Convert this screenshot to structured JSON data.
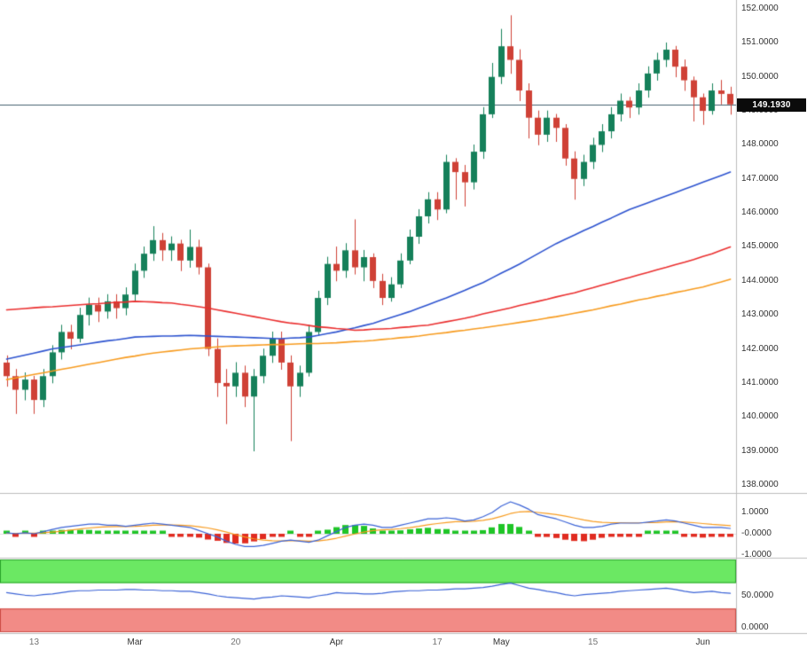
{
  "colors": {
    "background": "#ffffff",
    "candle_up": "#15805a",
    "candle_down": "#cf4136",
    "ma_fast_blue": "#2d53cf",
    "ma_mid_red": "#ea2e2e",
    "ma_slow_orange": "#f79b1f",
    "last_price_line": "#44606f",
    "badge_bg": "#0b0b0b",
    "badge_text": "#ffffff",
    "hist_up": "#1fc527",
    "hist_down": "#e02b20",
    "indicator_line_blue": "#3b63d6",
    "indicator_line_orange": "#f79b1f",
    "band_green_fill": "#6be863",
    "band_green_edge": "#2aa42a",
    "band_red_fill": "#f28b86",
    "band_red_edge": "#cc4a42",
    "separator": "#bdbdbd",
    "axis_text": "#333333"
  },
  "chart_data": {
    "type": "candlestick",
    "title": "",
    "legend_position": "none",
    "grid": false,
    "x_tick_labels": [
      {
        "label": "13",
        "index": 3,
        "emphasis": false
      },
      {
        "label": "Mar",
        "index": 14,
        "emphasis": true
      },
      {
        "label": "20",
        "index": 25,
        "emphasis": false
      },
      {
        "label": "Apr",
        "index": 36,
        "emphasis": true
      },
      {
        "label": "17",
        "index": 47,
        "emphasis": false
      },
      {
        "label": "May",
        "index": 54,
        "emphasis": true
      },
      {
        "label": "15",
        "index": 64,
        "emphasis": false
      },
      {
        "label": "Jun",
        "index": 76,
        "emphasis": true
      }
    ],
    "price_axis": {
      "tick_labels": [
        "152.0000",
        "151.0000",
        "150.0000",
        "149.0000",
        "148.0000",
        "147.0000",
        "146.0000",
        "145.0000",
        "144.0000",
        "143.0000",
        "142.0000",
        "141.0000",
        "140.0000",
        "139.0000",
        "138.0000"
      ],
      "last_price": "149.1930",
      "range": [
        138.0,
        152.3
      ]
    },
    "candles": [
      [
        141.6,
        141.8,
        140.9,
        141.2
      ],
      [
        141.2,
        141.4,
        140.1,
        140.8
      ],
      [
        140.8,
        141.3,
        140.5,
        141.1
      ],
      [
        141.1,
        141.2,
        140.1,
        140.5
      ],
      [
        140.5,
        141.4,
        140.3,
        141.2
      ],
      [
        141.2,
        142.1,
        141.0,
        141.9
      ],
      [
        141.9,
        142.7,
        141.7,
        142.5
      ],
      [
        142.5,
        142.7,
        142.0,
        142.3
      ],
      [
        142.3,
        143.2,
        142.2,
        143.0
      ],
      [
        143.0,
        143.5,
        142.7,
        143.3
      ],
      [
        143.3,
        143.5,
        142.8,
        143.1
      ],
      [
        143.1,
        143.6,
        142.9,
        143.4
      ],
      [
        143.4,
        143.6,
        142.9,
        143.2
      ],
      [
        143.2,
        143.8,
        143.0,
        143.6
      ],
      [
        143.6,
        144.5,
        143.4,
        144.3
      ],
      [
        144.3,
        145.0,
        144.1,
        144.8
      ],
      [
        144.8,
        145.6,
        144.6,
        145.2
      ],
      [
        145.2,
        145.4,
        144.6,
        144.9
      ],
      [
        144.9,
        145.3,
        144.6,
        145.1
      ],
      [
        145.1,
        145.2,
        144.3,
        144.6
      ],
      [
        144.6,
        145.5,
        144.4,
        145.0
      ],
      [
        145.0,
        145.2,
        144.2,
        144.4
      ],
      [
        144.4,
        144.5,
        141.8,
        142.0
      ],
      [
        142.0,
        142.3,
        140.6,
        141.0
      ],
      [
        141.0,
        141.4,
        139.8,
        140.9
      ],
      [
        140.9,
        141.6,
        140.6,
        141.3
      ],
      [
        141.3,
        141.5,
        140.3,
        140.6
      ],
      [
        140.6,
        141.4,
        139.0,
        141.2
      ],
      [
        141.2,
        142.0,
        141.0,
        141.8
      ],
      [
        141.8,
        142.5,
        141.6,
        142.3
      ],
      [
        142.3,
        142.5,
        141.4,
        141.6
      ],
      [
        141.6,
        141.8,
        139.3,
        140.9
      ],
      [
        140.9,
        141.5,
        140.6,
        141.3
      ],
      [
        141.3,
        142.7,
        141.2,
        142.5
      ],
      [
        142.5,
        143.7,
        142.4,
        143.5
      ],
      [
        143.5,
        144.7,
        143.3,
        144.5
      ],
      [
        144.5,
        145.0,
        144.0,
        144.3
      ],
      [
        144.3,
        145.1,
        144.1,
        144.9
      ],
      [
        144.9,
        145.8,
        144.2,
        144.4
      ],
      [
        144.4,
        144.9,
        144.0,
        144.7
      ],
      [
        144.7,
        144.8,
        143.8,
        144.0
      ],
      [
        144.0,
        144.2,
        143.3,
        143.5
      ],
      [
        143.5,
        144.1,
        143.4,
        143.9
      ],
      [
        143.9,
        144.8,
        143.8,
        144.6
      ],
      [
        144.6,
        145.5,
        144.5,
        145.3
      ],
      [
        145.3,
        146.1,
        145.1,
        145.9
      ],
      [
        145.9,
        146.6,
        145.7,
        146.4
      ],
      [
        146.4,
        146.6,
        145.8,
        146.1
      ],
      [
        146.1,
        147.7,
        146.0,
        147.5
      ],
      [
        147.5,
        147.6,
        146.4,
        147.2
      ],
      [
        147.2,
        147.4,
        146.2,
        146.9
      ],
      [
        146.9,
        148.0,
        146.7,
        147.8
      ],
      [
        147.8,
        149.1,
        147.6,
        148.9
      ],
      [
        148.9,
        150.4,
        148.8,
        150.0
      ],
      [
        150.0,
        151.4,
        149.8,
        150.9
      ],
      [
        150.9,
        151.8,
        150.1,
        150.5
      ],
      [
        150.5,
        150.8,
        149.3,
        149.6
      ],
      [
        149.6,
        149.8,
        148.2,
        148.8
      ],
      [
        148.8,
        149.0,
        148.0,
        148.3
      ],
      [
        148.3,
        149.0,
        148.1,
        148.8
      ],
      [
        148.8,
        148.9,
        148.1,
        148.5
      ],
      [
        148.5,
        148.6,
        147.4,
        147.6
      ],
      [
        147.6,
        147.8,
        146.4,
        147.0
      ],
      [
        147.0,
        147.7,
        146.8,
        147.5
      ],
      [
        147.5,
        148.2,
        147.3,
        148.0
      ],
      [
        148.0,
        148.6,
        147.8,
        148.4
      ],
      [
        148.4,
        149.1,
        148.2,
        148.9
      ],
      [
        148.9,
        149.5,
        148.7,
        149.3
      ],
      [
        149.3,
        149.4,
        148.8,
        149.1
      ],
      [
        149.1,
        149.8,
        148.9,
        149.6
      ],
      [
        149.6,
        150.3,
        149.4,
        150.1
      ],
      [
        150.1,
        150.7,
        149.9,
        150.5
      ],
      [
        150.5,
        151.0,
        150.3,
        150.8
      ],
      [
        150.8,
        150.9,
        150.0,
        150.3
      ],
      [
        150.3,
        150.5,
        149.6,
        149.9
      ],
      [
        149.9,
        150.0,
        148.7,
        149.4
      ],
      [
        149.4,
        149.5,
        148.6,
        149.0
      ],
      [
        149.0,
        149.8,
        148.9,
        149.6
      ],
      [
        149.6,
        149.9,
        149.2,
        149.5
      ],
      [
        149.5,
        149.7,
        148.9,
        149.193
      ]
    ],
    "overlays": [
      {
        "name": "ma-blue",
        "color_key": "ma_fast_blue",
        "values": [
          141.7,
          141.76,
          141.82,
          141.88,
          141.94,
          142.0,
          142.04,
          142.08,
          142.12,
          142.16,
          142.2,
          142.24,
          142.27,
          142.31,
          142.35,
          142.36,
          142.37,
          142.38,
          142.38,
          142.39,
          142.4,
          142.39,
          142.38,
          142.37,
          142.36,
          142.35,
          142.34,
          142.33,
          142.32,
          142.31,
          142.3,
          142.32,
          142.33,
          142.35,
          142.4,
          142.45,
          142.5,
          142.56,
          142.62,
          142.69,
          142.75,
          142.84,
          142.93,
          143.01,
          143.1,
          143.2,
          143.3,
          143.4,
          143.5,
          143.61,
          143.72,
          143.84,
          143.95,
          144.09,
          144.23,
          144.36,
          144.5,
          144.65,
          144.8,
          144.95,
          145.1,
          145.23,
          145.35,
          145.48,
          145.6,
          145.73,
          145.85,
          145.98,
          146.1,
          146.2,
          146.3,
          146.4,
          146.5,
          146.6,
          146.7,
          146.8,
          146.9,
          147.0,
          147.1,
          147.2
        ]
      },
      {
        "name": "ma-red",
        "color_key": "ma_mid_red",
        "values": [
          143.15,
          143.17,
          143.19,
          143.21,
          143.23,
          143.24,
          143.26,
          143.28,
          143.3,
          143.32,
          143.33,
          143.35,
          143.37,
          143.38,
          143.4,
          143.39,
          143.38,
          143.36,
          143.35,
          143.31,
          143.28,
          143.24,
          143.2,
          143.15,
          143.1,
          143.05,
          143.0,
          142.95,
          142.9,
          142.85,
          142.8,
          142.76,
          142.73,
          142.69,
          142.65,
          142.63,
          142.6,
          142.58,
          142.55,
          142.56,
          142.58,
          142.59,
          142.6,
          142.63,
          142.65,
          142.68,
          142.7,
          142.75,
          142.8,
          142.85,
          142.9,
          142.96,
          143.03,
          143.09,
          143.15,
          143.21,
          143.28,
          143.34,
          143.4,
          143.46,
          143.53,
          143.59,
          143.65,
          143.73,
          143.8,
          143.88,
          143.95,
          144.03,
          144.1,
          144.18,
          144.25,
          144.33,
          144.4,
          144.48,
          144.55,
          144.63,
          144.72,
          144.8,
          144.9,
          145.0
        ]
      },
      {
        "name": "ma-orange",
        "color_key": "ma_slow_orange",
        "values": [
          141.1,
          141.15,
          141.2,
          141.25,
          141.3,
          141.35,
          141.4,
          141.45,
          141.5,
          141.55,
          141.6,
          141.65,
          141.7,
          141.75,
          141.79,
          141.84,
          141.88,
          141.91,
          141.94,
          141.97,
          142.0,
          142.02,
          142.04,
          142.06,
          142.08,
          142.09,
          142.1,
          142.11,
          142.12,
          142.13,
          142.13,
          142.14,
          142.15,
          142.16,
          142.16,
          142.17,
          142.18,
          142.2,
          142.22,
          142.23,
          142.25,
          142.28,
          142.3,
          142.33,
          142.35,
          142.38,
          142.42,
          142.45,
          142.48,
          142.52,
          142.55,
          142.59,
          142.62,
          142.66,
          142.7,
          142.74,
          142.78,
          142.82,
          142.86,
          142.91,
          142.95,
          143.0,
          143.05,
          143.1,
          143.15,
          143.21,
          143.27,
          143.32,
          143.38,
          143.44,
          143.49,
          143.55,
          143.6,
          143.66,
          143.71,
          143.77,
          143.82,
          143.9,
          143.97,
          144.05
        ]
      }
    ],
    "indicator_macd": {
      "ticks": [
        {
          "label": "1.0000",
          "value": 1
        },
        {
          "label": "-0.0000",
          "value": 0
        },
        {
          "label": "-1.0000",
          "value": -1
        }
      ],
      "line": [
        0.05,
        0.0,
        0.05,
        0.0,
        0.1,
        0.2,
        0.3,
        0.35,
        0.4,
        0.45,
        0.45,
        0.4,
        0.4,
        0.35,
        0.4,
        0.45,
        0.5,
        0.45,
        0.4,
        0.35,
        0.3,
        0.15,
        0.0,
        -0.15,
        -0.35,
        -0.5,
        -0.6,
        -0.6,
        -0.55,
        -0.45,
        -0.35,
        -0.3,
        -0.35,
        -0.4,
        -0.3,
        -0.1,
        0.1,
        0.3,
        0.4,
        0.45,
        0.4,
        0.3,
        0.3,
        0.4,
        0.5,
        0.6,
        0.7,
        0.7,
        0.75,
        0.7,
        0.6,
        0.65,
        0.8,
        1.0,
        1.3,
        1.5,
        1.35,
        1.15,
        0.9,
        0.8,
        0.7,
        0.55,
        0.4,
        0.3,
        0.3,
        0.35,
        0.45,
        0.5,
        0.5,
        0.5,
        0.55,
        0.6,
        0.65,
        0.6,
        0.5,
        0.4,
        0.3,
        0.3,
        0.3,
        0.25
      ],
      "signal": [
        0.02,
        0.02,
        0.03,
        0.03,
        0.05,
        0.08,
        0.12,
        0.17,
        0.22,
        0.27,
        0.31,
        0.33,
        0.34,
        0.34,
        0.35,
        0.37,
        0.4,
        0.41,
        0.41,
        0.4,
        0.38,
        0.33,
        0.27,
        0.18,
        0.08,
        -0.04,
        -0.15,
        -0.24,
        -0.3,
        -0.33,
        -0.34,
        -0.33,
        -0.33,
        -0.35,
        -0.34,
        -0.29,
        -0.21,
        -0.11,
        -0.01,
        0.08,
        0.15,
        0.18,
        0.2,
        0.24,
        0.29,
        0.35,
        0.42,
        0.48,
        0.53,
        0.57,
        0.57,
        0.59,
        0.63,
        0.7,
        0.82,
        0.95,
        1.03,
        1.05,
        1.0,
        0.95,
        0.9,
        0.83,
        0.74,
        0.65,
        0.58,
        0.54,
        0.52,
        0.52,
        0.51,
        0.51,
        0.52,
        0.53,
        0.56,
        0.57,
        0.55,
        0.52,
        0.48,
        0.44,
        0.41,
        0.38
      ]
    },
    "indicator_rsi": {
      "ticks": [
        {
          "label": "50.0000",
          "value": 50
        },
        {
          "label": "0.0000",
          "value": 0
        }
      ],
      "values": [
        55,
        53,
        51,
        50,
        52,
        53,
        55,
        57,
        58,
        58,
        59,
        59,
        59,
        60,
        60,
        59,
        59,
        58,
        58,
        57,
        57,
        55,
        53,
        50,
        48,
        47,
        46,
        45,
        47,
        48,
        50,
        49,
        48,
        47,
        50,
        52,
        55,
        54,
        54,
        53,
        53,
        54,
        56,
        57,
        58,
        58,
        59,
        59,
        60,
        61,
        61,
        62,
        63,
        65,
        68,
        70,
        66,
        62,
        60,
        57,
        55,
        52,
        50,
        52,
        53,
        54,
        55,
        57,
        58,
        59,
        60,
        61,
        62,
        60,
        57,
        55,
        56,
        57,
        55,
        54
      ],
      "bands": {
        "upper": [
          70,
          100
        ],
        "lower": [
          0,
          30
        ]
      }
    }
  }
}
